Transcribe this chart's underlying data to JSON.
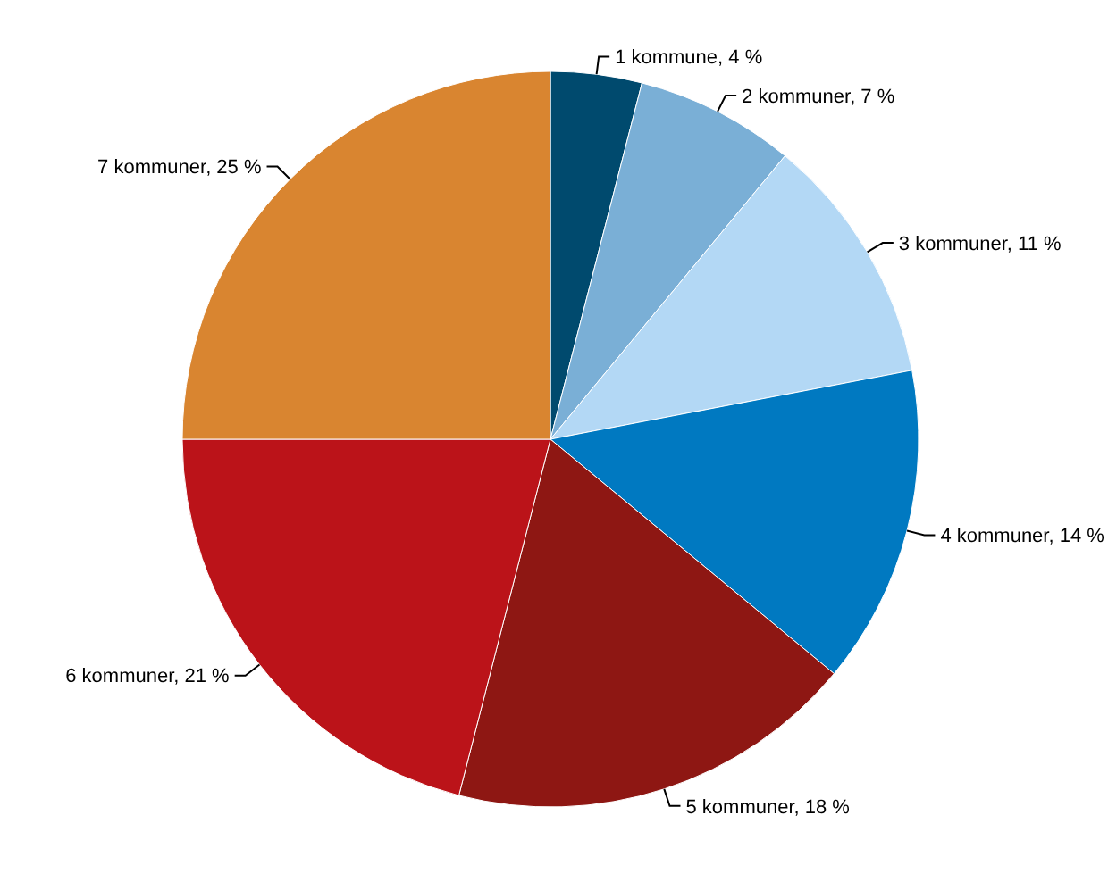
{
  "chart_data": {
    "type": "pie",
    "categories": [
      "1 kommune",
      "2 kommuner",
      "3 kommuner",
      "4 kommuner",
      "5 kommuner",
      "6 kommuner",
      "7 kommuner"
    ],
    "values": [
      4,
      7,
      11,
      14,
      18,
      21,
      25
    ],
    "value_labels": [
      "4 %",
      "7 %",
      "11 %",
      "14 %",
      "18 %",
      "21 %",
      "25 %"
    ],
    "colors": [
      "#004a6e",
      "#7aafd6",
      "#b3d8f5",
      "#0079c1",
      "#8e1713",
      "#bb1319",
      "#d98530"
    ]
  }
}
